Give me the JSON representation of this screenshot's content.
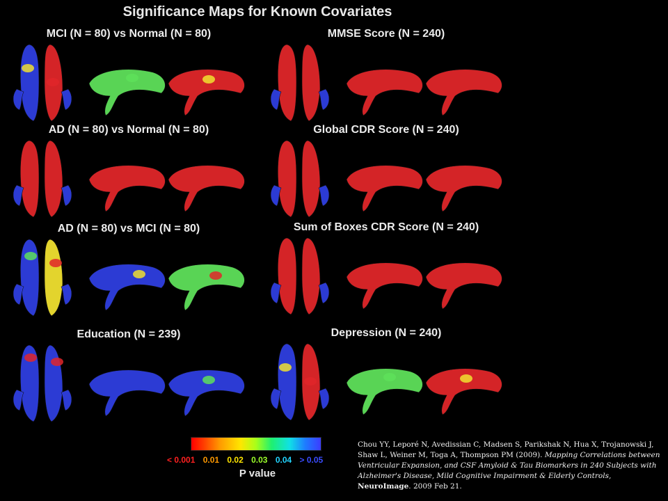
{
  "title": "Significance Maps for Known Covariates",
  "panels": [
    {
      "title": "MCI (N = 80) vs Normal (N = 80)",
      "pattern": "mixed"
    },
    {
      "title": "MMSE Score (N = 240)",
      "pattern": "red"
    },
    {
      "title": "AD (N = 80) vs Normal (N = 80)",
      "pattern": "red"
    },
    {
      "title": "Global CDR Score (N = 240)",
      "pattern": "red"
    },
    {
      "title": "AD (N = 80) vs MCI (N = 80)",
      "pattern": "blue-mixed"
    },
    {
      "title": "Sum of Boxes CDR Score (N = 240)",
      "pattern": "red"
    },
    {
      "title": "Education (N = 239)",
      "pattern": "blue"
    },
    {
      "title": "Depression (N = 240)",
      "pattern": "mixed"
    }
  ],
  "legend": {
    "title": "P value",
    "labels": [
      {
        "text": "< 0.001",
        "color": "#ff2020"
      },
      {
        "text": "0.01",
        "color": "#ff9900"
      },
      {
        "text": "0.02",
        "color": "#ffe600"
      },
      {
        "text": "0.03",
        "color": "#9cff2a"
      },
      {
        "text": "0.04",
        "color": "#22d4ff"
      },
      {
        "text": "> 0.05",
        "color": "#3a4cff"
      }
    ]
  },
  "citation": {
    "authors": "Chou YY, Leporé N, Avedissian C, Madsen S, Parikshak N, Hua X, Trojanowski J, Shaw L, Weiner M, Toga A, Thompson PM (2009).",
    "paper_title": "Mapping Correlations between Ventricular Expansion, and CSF Amyloid & Tau Biomarkers in 240 Subjects with Alzheimer's Disease, Mild Cognitive Impairment & Elderly Controls,",
    "journal": "NeuroImage",
    "date": ". 2009 Feb 21."
  },
  "colors": {
    "significant": "#e0262a",
    "non_significant": "#2f3fe0",
    "mid_green": "#5ee05a",
    "mid_yellow": "#f0e030"
  }
}
